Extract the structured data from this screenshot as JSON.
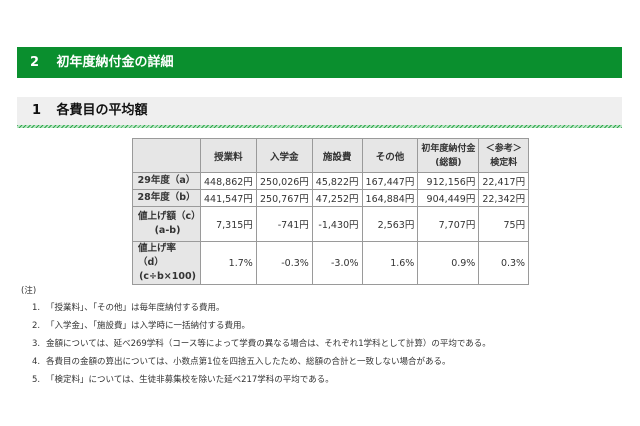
{
  "section": {
    "number": "2",
    "title": "初年度納付金の詳細",
    "color": "#0a8f2e"
  },
  "subsection": {
    "number": "1",
    "title": "各費目の平均額"
  },
  "table": {
    "headers": [
      "",
      "授業料",
      "入学金",
      "施設費",
      "その他",
      "初年度納付金",
      "＜参考＞"
    ],
    "headers_line2": [
      "",
      "",
      "",
      "",
      "",
      "(総額)",
      "検定料"
    ],
    "rows": [
      {
        "label": "29年度（a）",
        "label_line2": "",
        "cells": [
          "448,862円",
          "250,026円",
          "45,822円",
          "167,447円",
          "912,156円",
          "22,417円"
        ]
      },
      {
        "label": "28年度（b）",
        "label_line2": "",
        "cells": [
          "441,547円",
          "250,767円",
          "47,252円",
          "164,884円",
          "904,449円",
          "22,342円"
        ]
      },
      {
        "label": "値上げ額（c）",
        "label_line2": "(a-b)",
        "cells": [
          "7,315円",
          "-741円",
          "-1,430円",
          "2,563円",
          "7,707円",
          "75円"
        ]
      },
      {
        "label": "値上げ率（d）",
        "label_line2": "(c÷b×100)",
        "cells": [
          "1.7%",
          "-0.3%",
          "-3.0%",
          "1.6%",
          "0.9%",
          "0.3%"
        ]
      }
    ]
  },
  "notes": {
    "title": "(注)",
    "items": [
      {
        "n": "1.",
        "text": "「授業料」、「その他」は毎年度納付する費用。"
      },
      {
        "n": "2.",
        "text": "「入学金」、「施設費」は入学時に一括納付する費用。"
      },
      {
        "n": "3.",
        "text": "金額については、延べ269学科（コース等によって学費の異なる場合は、それぞれ1学科として計算）の平均である。"
      },
      {
        "n": "4.",
        "text": "各費目の金額の算出については、小数点第1位を四捨五入したため、総額の合計と一致しない場合がある。"
      },
      {
        "n": "5.",
        "text": "「検定料」については、生徒非募集校を除いた延べ217学科の平均である。"
      }
    ]
  }
}
